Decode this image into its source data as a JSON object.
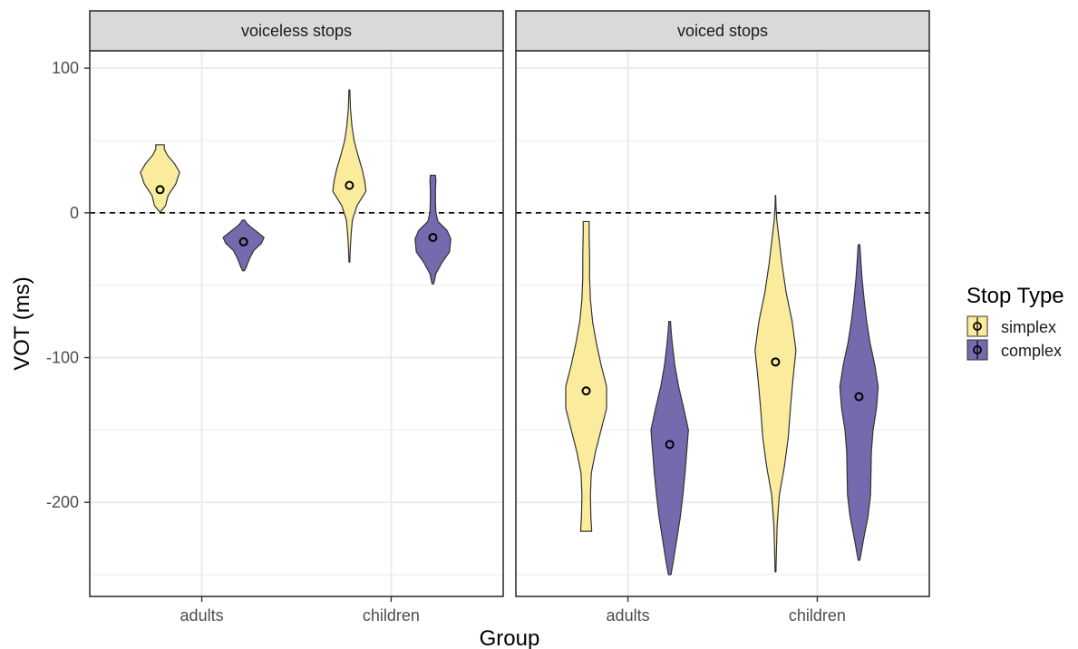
{
  "chart_data": {
    "type": "violin",
    "xlabel": "Group",
    "ylabel": "VOT (ms)",
    "ylim": [
      -265,
      112
    ],
    "y_ticks": [
      100,
      0,
      -100,
      -200
    ],
    "y_tick_labels": [
      "100",
      "0",
      "-100",
      "-200"
    ],
    "reference_line": 0,
    "grid": true,
    "categories": [
      "adults",
      "children"
    ],
    "facets": [
      {
        "label": "voiceless stops",
        "violins": [
          {
            "group": "adults",
            "stop_type": "simplex",
            "mean": 16,
            "profile": [
              [
                1,
                0.04
              ],
              [
                5,
                0.26
              ],
              [
                12,
                0.38
              ],
              [
                20,
                0.74
              ],
              [
                28,
                0.92
              ],
              [
                34,
                0.68
              ],
              [
                40,
                0.34
              ],
              [
                44,
                0.2
              ],
              [
                47,
                0.2
              ]
            ]
          },
          {
            "group": "adults",
            "stop_type": "complex",
            "mean": -20,
            "profile": [
              [
                -40,
                0.04
              ],
              [
                -37,
                0.14
              ],
              [
                -31,
                0.3
              ],
              [
                -26,
                0.48
              ],
              [
                -21,
                0.84
              ],
              [
                -17,
                0.96
              ],
              [
                -13,
                0.62
              ],
              [
                -9,
                0.28
              ],
              [
                -7,
                0.14
              ],
              [
                -5,
                0.06
              ]
            ]
          },
          {
            "group": "children",
            "stop_type": "simplex",
            "mean": 19,
            "profile": [
              [
                -34,
                0.02
              ],
              [
                -25,
                0.04
              ],
              [
                -15,
                0.08
              ],
              [
                -5,
                0.14
              ],
              [
                5,
                0.36
              ],
              [
                15,
                0.78
              ],
              [
                22,
                0.72
              ],
              [
                30,
                0.6
              ],
              [
                40,
                0.4
              ],
              [
                50,
                0.22
              ],
              [
                60,
                0.12
              ],
              [
                72,
                0.05
              ],
              [
                85,
                0.02
              ]
            ]
          },
          {
            "group": "children",
            "stop_type": "complex",
            "mean": -17,
            "profile": [
              [
                -49,
                0.04
              ],
              [
                -42,
                0.14
              ],
              [
                -34,
                0.44
              ],
              [
                -27,
                0.78
              ],
              [
                -18,
                0.84
              ],
              [
                -12,
                0.66
              ],
              [
                -6,
                0.24
              ],
              [
                0,
                0.14
              ],
              [
                8,
                0.12
              ],
              [
                16,
                0.12
              ],
              [
                22,
                0.14
              ],
              [
                26,
                0.12
              ]
            ]
          }
        ]
      },
      {
        "label": "voiced stops",
        "violins": [
          {
            "group": "adults",
            "stop_type": "simplex",
            "mean": -123,
            "profile": [
              [
                -220,
                0.26
              ],
              [
                -210,
                0.22
              ],
              [
                -195,
                0.2
              ],
              [
                -180,
                0.24
              ],
              [
                -165,
                0.44
              ],
              [
                -150,
                0.7
              ],
              [
                -135,
                0.96
              ],
              [
                -120,
                0.96
              ],
              [
                -105,
                0.7
              ],
              [
                -90,
                0.48
              ],
              [
                -75,
                0.3
              ],
              [
                -60,
                0.2
              ],
              [
                -45,
                0.16
              ],
              [
                -30,
                0.16
              ],
              [
                -15,
                0.14
              ],
              [
                -6,
                0.14
              ]
            ]
          },
          {
            "group": "adults",
            "stop_type": "complex",
            "mean": -160,
            "profile": [
              [
                -250,
                0.06
              ],
              [
                -240,
                0.18
              ],
              [
                -225,
                0.34
              ],
              [
                -210,
                0.5
              ],
              [
                -195,
                0.62
              ],
              [
                -180,
                0.72
              ],
              [
                -165,
                0.8
              ],
              [
                -150,
                0.88
              ],
              [
                -135,
                0.66
              ],
              [
                -120,
                0.42
              ],
              [
                -105,
                0.24
              ],
              [
                -90,
                0.12
              ],
              [
                -80,
                0.06
              ],
              [
                -75,
                0.04
              ]
            ]
          },
          {
            "group": "children",
            "stop_type": "simplex",
            "mean": -103,
            "profile": [
              [
                -248,
                0.02
              ],
              [
                -235,
                0.04
              ],
              [
                -215,
                0.08
              ],
              [
                -195,
                0.18
              ],
              [
                -175,
                0.42
              ],
              [
                -155,
                0.6
              ],
              [
                -135,
                0.7
              ],
              [
                -115,
                0.82
              ],
              [
                -95,
                0.96
              ],
              [
                -75,
                0.78
              ],
              [
                -55,
                0.5
              ],
              [
                -35,
                0.3
              ],
              [
                -20,
                0.18
              ],
              [
                -5,
                0.06
              ],
              [
                5,
                0.02
              ],
              [
                12,
                0.01
              ]
            ]
          },
          {
            "group": "children",
            "stop_type": "complex",
            "mean": -127,
            "profile": [
              [
                -240,
                0.04
              ],
              [
                -225,
                0.22
              ],
              [
                -210,
                0.42
              ],
              [
                -195,
                0.54
              ],
              [
                -180,
                0.56
              ],
              [
                -165,
                0.58
              ],
              [
                -150,
                0.66
              ],
              [
                -135,
                0.82
              ],
              [
                -120,
                0.9
              ],
              [
                -105,
                0.74
              ],
              [
                -90,
                0.52
              ],
              [
                -75,
                0.36
              ],
              [
                -60,
                0.24
              ],
              [
                -45,
                0.14
              ],
              [
                -32,
                0.08
              ],
              [
                -22,
                0.04
              ]
            ]
          }
        ]
      }
    ],
    "legend": {
      "title": "Stop Type",
      "placement": "right",
      "items": [
        {
          "label": "simplex",
          "color": "#fbeb9c"
        },
        {
          "label": "complex",
          "color": "#7669ae"
        }
      ]
    },
    "colors": {
      "simplex": "#fbeb9c",
      "complex": "#7669ae",
      "outline": "#333333",
      "strip_bg": "#d9d9d9",
      "grid": "#ebebeb"
    }
  }
}
